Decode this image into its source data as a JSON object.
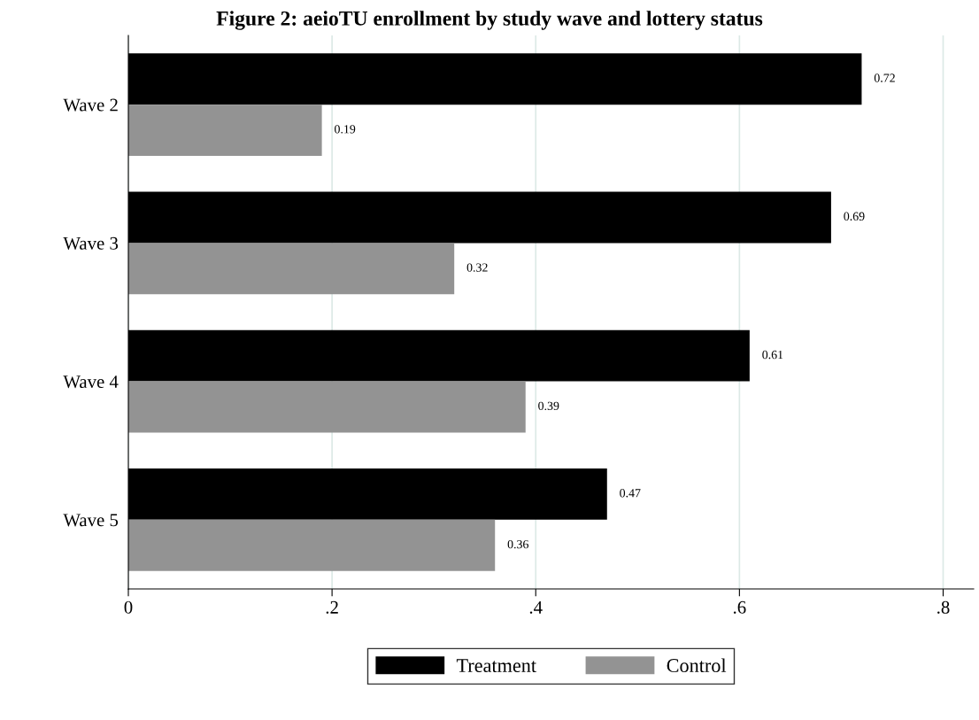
{
  "chart_data": {
    "type": "bar",
    "orientation": "horizontal",
    "title": "Figure 2: aeioTU enrollment by study wave and lottery status",
    "categories": [
      "Wave 2",
      "Wave 3",
      "Wave 4",
      "Wave 5"
    ],
    "series": [
      {
        "name": "Treatment",
        "color": "#000000",
        "values": [
          0.72,
          0.69,
          0.61,
          0.47
        ]
      },
      {
        "name": "Control",
        "color": "#939393",
        "values": [
          0.19,
          0.32,
          0.39,
          0.36
        ]
      }
    ],
    "xlim": [
      0,
      0.83
    ],
    "xticks": [
      0,
      {
        "value": 0.2,
        "label": ".2"
      },
      {
        "value": 0.4,
        "label": ".4"
      },
      {
        "value": 0.6,
        "label": ".6"
      },
      {
        "value": 0.8,
        "label": ".8"
      }
    ],
    "grid": "x",
    "legend": "bottom",
    "data_labels": true
  }
}
